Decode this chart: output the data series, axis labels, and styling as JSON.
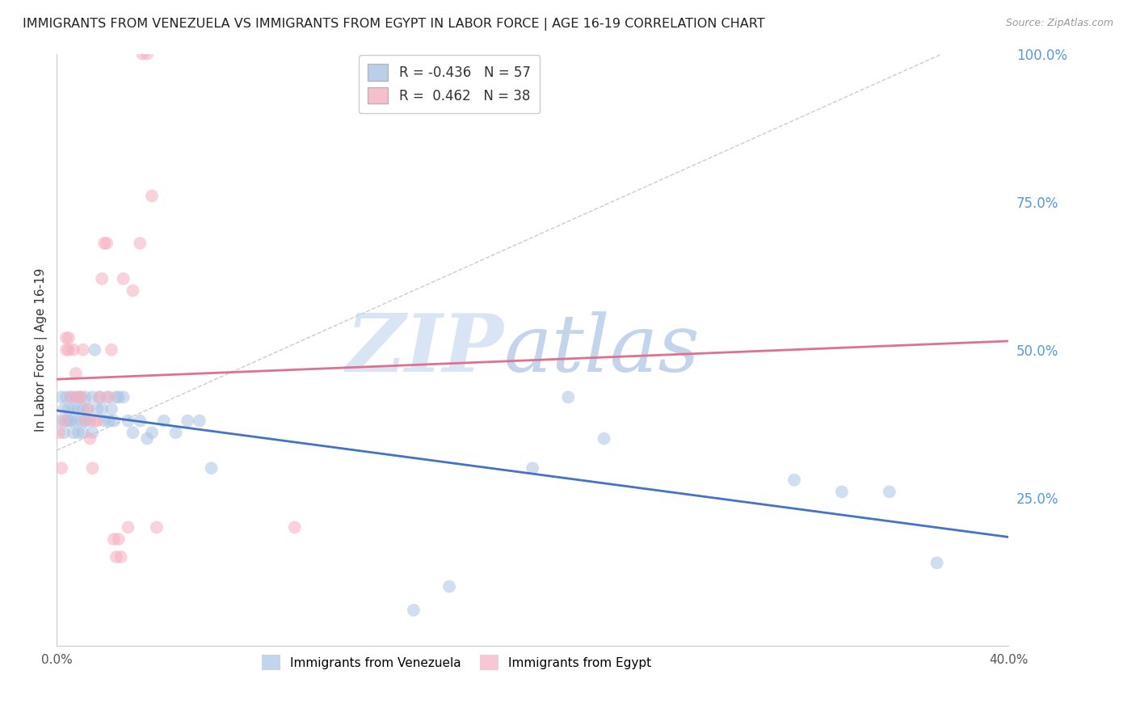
{
  "title": "IMMIGRANTS FROM VENEZUELA VS IMMIGRANTS FROM EGYPT IN LABOR FORCE | AGE 16-19 CORRELATION CHART",
  "source": "Source: ZipAtlas.com",
  "ylabel": "In Labor Force | Age 16-19",
  "xlim": [
    0.0,
    0.4
  ],
  "ylim": [
    0.0,
    1.0
  ],
  "xticks": [
    0.0,
    0.4
  ],
  "xtick_labels": [
    "0.0%",
    "40.0%"
  ],
  "yticks": [
    0.0,
    0.25,
    0.5,
    0.75,
    1.0
  ],
  "ytick_labels": [
    "",
    "25.0%",
    "50.0%",
    "75.0%",
    "100.0%"
  ],
  "background_color": "#ffffff",
  "grid_color": "#dddddd",
  "legend_R_venezuela": "-0.436",
  "legend_N_venezuela": "57",
  "legend_R_egypt": "0.462",
  "legend_N_egypt": "38",
  "venezuela_color": "#aac4e4",
  "egypt_color": "#f4b0c0",
  "venezuela_line_color": "#4472c4",
  "egypt_line_color": "#e07090",
  "ref_line_color": "#cccccc",
  "venezuela_scatter_x": [
    0.001,
    0.002,
    0.003,
    0.003,
    0.004,
    0.004,
    0.005,
    0.005,
    0.006,
    0.006,
    0.007,
    0.007,
    0.008,
    0.008,
    0.009,
    0.009,
    0.01,
    0.01,
    0.011,
    0.011,
    0.012,
    0.012,
    0.013,
    0.014,
    0.015,
    0.015,
    0.016,
    0.017,
    0.018,
    0.019,
    0.02,
    0.021,
    0.022,
    0.023,
    0.024,
    0.025,
    0.026,
    0.028,
    0.03,
    0.032,
    0.035,
    0.038,
    0.04,
    0.045,
    0.05,
    0.055,
    0.06,
    0.065,
    0.15,
    0.165,
    0.2,
    0.215,
    0.23,
    0.31,
    0.33,
    0.35,
    0.37
  ],
  "venezuela_scatter_y": [
    0.38,
    0.42,
    0.4,
    0.36,
    0.38,
    0.42,
    0.4,
    0.38,
    0.42,
    0.38,
    0.4,
    0.36,
    0.42,
    0.38,
    0.4,
    0.36,
    0.42,
    0.38,
    0.4,
    0.36,
    0.42,
    0.38,
    0.4,
    0.38,
    0.42,
    0.36,
    0.5,
    0.4,
    0.42,
    0.4,
    0.38,
    0.42,
    0.38,
    0.4,
    0.38,
    0.42,
    0.42,
    0.42,
    0.38,
    0.36,
    0.38,
    0.35,
    0.36,
    0.38,
    0.36,
    0.38,
    0.38,
    0.3,
    0.06,
    0.1,
    0.3,
    0.42,
    0.35,
    0.28,
    0.26,
    0.26,
    0.14
  ],
  "egypt_scatter_x": [
    0.001,
    0.002,
    0.003,
    0.004,
    0.004,
    0.005,
    0.005,
    0.006,
    0.007,
    0.008,
    0.009,
    0.01,
    0.011,
    0.012,
    0.013,
    0.014,
    0.015,
    0.016,
    0.017,
    0.018,
    0.019,
    0.02,
    0.021,
    0.022,
    0.023,
    0.024,
    0.025,
    0.026,
    0.027,
    0.028,
    0.03,
    0.032,
    0.035,
    0.036,
    0.038,
    0.04,
    0.042,
    0.1
  ],
  "egypt_scatter_y": [
    0.36,
    0.3,
    0.38,
    0.5,
    0.52,
    0.52,
    0.5,
    0.42,
    0.5,
    0.46,
    0.42,
    0.42,
    0.5,
    0.38,
    0.4,
    0.35,
    0.3,
    0.38,
    0.38,
    0.42,
    0.62,
    0.68,
    0.68,
    0.42,
    0.5,
    0.18,
    0.15,
    0.18,
    0.15,
    0.62,
    0.2,
    0.6,
    0.68,
    1.0,
    1.0,
    0.76,
    0.2,
    0.2
  ]
}
